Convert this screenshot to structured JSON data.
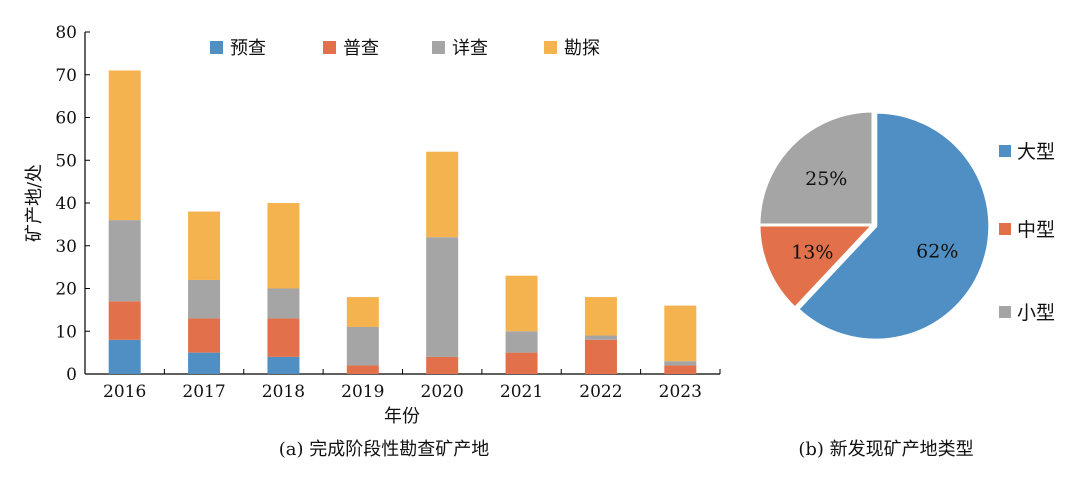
{
  "chart_data": [
    {
      "type": "bar",
      "stacked": true,
      "ylabel": "矿产地/处",
      "xlabel": "年份",
      "caption": "(a) 完成阶段性勘查矿产地",
      "ylim": [
        0,
        80
      ],
      "yticks": [
        0,
        10,
        20,
        30,
        40,
        50,
        60,
        70,
        80
      ],
      "categories": [
        "2016",
        "2017",
        "2018",
        "2019",
        "2020",
        "2021",
        "2022",
        "2023"
      ],
      "legend_position": "top",
      "series": [
        {
          "name": "预查",
          "color": "#4f8fc4",
          "values": [
            8,
            5,
            4,
            0,
            0,
            0,
            0,
            0
          ]
        },
        {
          "name": "普查",
          "color": "#e2704a",
          "values": [
            9,
            8,
            9,
            2,
            4,
            5,
            8,
            2
          ]
        },
        {
          "name": "详查",
          "color": "#a5a5a5",
          "values": [
            19,
            9,
            7,
            9,
            28,
            5,
            1,
            1
          ]
        },
        {
          "name": "勘探",
          "color": "#f5b350",
          "values": [
            35,
            16,
            20,
            7,
            20,
            13,
            9,
            13
          ]
        }
      ]
    },
    {
      "type": "pie",
      "caption": "(b) 新发现矿产地类型",
      "legend_position": "right",
      "slices": [
        {
          "name": "大型",
          "value": 62,
          "label": "62%",
          "color": "#4f8fc4"
        },
        {
          "name": "中型",
          "value": 13,
          "label": "13%",
          "color": "#e2704a"
        },
        {
          "name": "小型",
          "value": 25,
          "label": "25%",
          "color": "#a5a5a5"
        }
      ]
    }
  ]
}
